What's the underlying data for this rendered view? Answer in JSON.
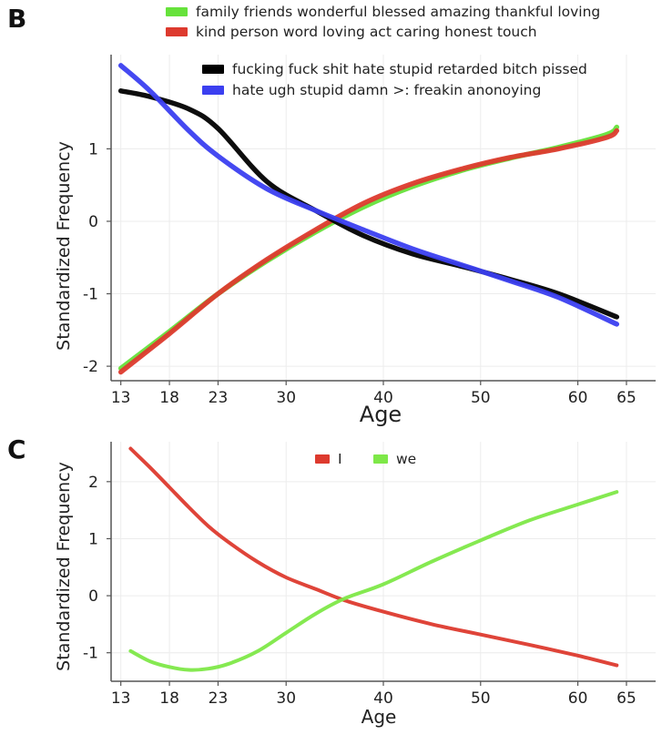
{
  "chart_data": [
    {
      "panel": "B",
      "type": "line",
      "xlabel": "Age",
      "ylabel": "Standardized Frequency",
      "xticks": [
        13,
        18,
        23,
        30,
        40,
        50,
        60,
        65
      ],
      "yticks": [
        1,
        0,
        -1,
        -2
      ],
      "xlim": [
        12,
        68
      ],
      "ylim": [
        -2.2,
        2.3
      ],
      "grid": true,
      "series": [
        {
          "name": "family friends wonderful blessed amazing thankful loving",
          "color": "#66e23b",
          "x": [
            13,
            18,
            23,
            28,
            33,
            38,
            43,
            48,
            53,
            58,
            63,
            64
          ],
          "y": [
            -2.03,
            -1.52,
            -1.0,
            -0.55,
            -0.15,
            0.2,
            0.48,
            0.7,
            0.87,
            1.02,
            1.2,
            1.3
          ]
        },
        {
          "name": "kind person word loving act caring honest touch",
          "color": "#dd3a2e",
          "x": [
            13,
            18,
            23,
            28,
            33,
            38,
            43,
            48,
            53,
            58,
            63,
            64
          ],
          "y": [
            -2.08,
            -1.55,
            -1.0,
            -0.53,
            -0.12,
            0.25,
            0.52,
            0.72,
            0.88,
            1.0,
            1.16,
            1.25
          ]
        },
        {
          "name": "fucking fuck shit hate stupid retarded bitch pissed",
          "color": "#000000",
          "x": [
            13,
            16,
            20,
            23,
            28,
            33,
            38,
            43,
            48,
            53,
            58,
            64
          ],
          "y": [
            1.8,
            1.72,
            1.55,
            1.28,
            0.55,
            0.15,
            -0.2,
            -0.45,
            -0.62,
            -0.8,
            -1.0,
            -1.32
          ]
        },
        {
          "name": "hate ugh stupid damn >: freakin anonoying",
          "color": "#3b3ff0",
          "x": [
            13,
            16,
            20,
            23,
            28,
            33,
            38,
            43,
            48,
            53,
            58,
            64
          ],
          "y": [
            2.15,
            1.8,
            1.25,
            0.9,
            0.45,
            0.15,
            -0.12,
            -0.38,
            -0.6,
            -0.82,
            -1.05,
            -1.42
          ]
        }
      ]
    },
    {
      "panel": "C",
      "type": "line",
      "xlabel": "Age",
      "ylabel": "Standardized Frequency",
      "xticks": [
        13,
        18,
        23,
        30,
        40,
        50,
        60,
        65
      ],
      "yticks": [
        2,
        1,
        0,
        -1
      ],
      "xlim": [
        12,
        68
      ],
      "ylim": [
        -1.5,
        2.7
      ],
      "grid": true,
      "legend_position": "top",
      "series": [
        {
          "name": "I",
          "color": "#dd3a2e",
          "x": [
            14,
            16,
            18,
            20,
            22,
            24,
            27,
            30,
            33,
            36,
            40,
            45,
            50,
            55,
            60,
            64
          ],
          "y": [
            2.58,
            2.25,
            1.9,
            1.55,
            1.22,
            0.95,
            0.6,
            0.32,
            0.12,
            -0.08,
            -0.28,
            -0.5,
            -0.68,
            -0.86,
            -1.05,
            -1.22
          ]
        },
        {
          "name": "we",
          "color": "#7ee848",
          "x": [
            14,
            16,
            18,
            20,
            22,
            24,
            27,
            30,
            33,
            36,
            40,
            45,
            50,
            55,
            60,
            64
          ],
          "y": [
            -0.97,
            -1.15,
            -1.25,
            -1.3,
            -1.28,
            -1.2,
            -0.98,
            -0.65,
            -0.32,
            -0.05,
            0.2,
            0.6,
            0.97,
            1.32,
            1.6,
            1.82
          ]
        }
      ]
    }
  ]
}
